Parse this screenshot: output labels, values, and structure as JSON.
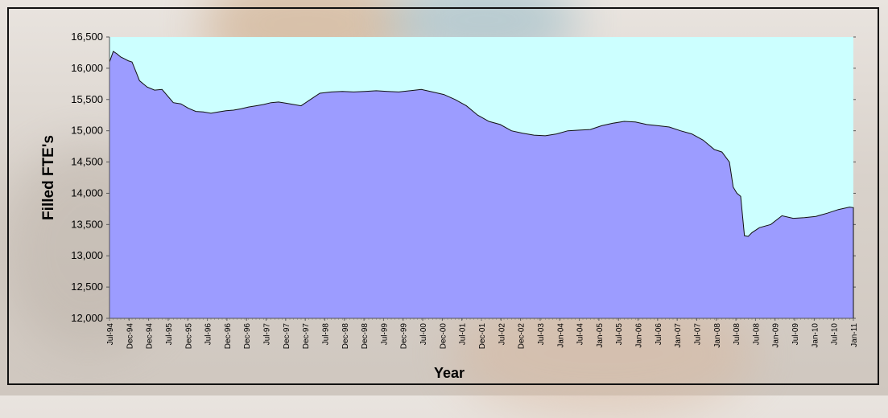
{
  "chart_data": {
    "type": "area",
    "xlabel": "Year",
    "ylabel": "Filled FTE's",
    "ylim": [
      12000,
      16500
    ],
    "yticks": [
      12000,
      12500,
      13000,
      13500,
      14000,
      14500,
      15000,
      15500,
      16000,
      16500
    ],
    "ytick_labels": [
      "12,000",
      "12,500",
      "13,000",
      "13,500",
      "14,000",
      "14,500",
      "15,000",
      "15,500",
      "16,000",
      "16,500"
    ],
    "x_range": [
      "1994-07",
      "2011-01"
    ],
    "xtick_labels": [
      "Jul-94",
      "Dec-94",
      "Dec-94",
      "Jul-95",
      "Dec-95",
      "Jul-96",
      "Dec-96",
      "Dec-96",
      "Jul-97",
      "Dec-97",
      "Dec-97",
      "Jul-98",
      "Dec-98",
      "Dec-98",
      "Jul-99",
      "Dec-99",
      "Jul-00",
      "Dec-00",
      "Jul-01",
      "Dec-01",
      "Jul-02",
      "Dec-02",
      "Jul-03",
      "Jan-04",
      "Jul-04",
      "Jan-05",
      "Jul-05",
      "Jan-06",
      "Jul-06",
      "Jan-07",
      "Jul-07",
      "Jan-08",
      "Jul-08",
      "Jul-08",
      "Jan-09",
      "Jul-09",
      "Jan-10",
      "Jul-10",
      "Jan-11"
    ],
    "series": [
      {
        "color": "#9c9cff",
        "x": [
          "1994-07",
          "1994-08",
          "1994-09",
          "1994-10",
          "1994-11",
          "1994-12",
          "1995-01",
          "1995-02",
          "1995-03",
          "1995-05",
          "1995-07",
          "1995-09",
          "1995-12",
          "1996-02",
          "1996-04",
          "1996-06",
          "1996-08",
          "1996-10",
          "1996-12",
          "1997-02",
          "1997-04",
          "1997-06",
          "1997-08",
          "1997-10",
          "1997-12",
          "1998-02",
          "1998-04",
          "1998-06",
          "1998-08",
          "1998-10",
          "1998-12",
          "1999-03",
          "1999-06",
          "1999-09",
          "1999-12",
          "2000-03",
          "2000-06",
          "2000-09",
          "2000-12",
          "2001-03",
          "2001-06",
          "2001-09",
          "2001-12",
          "2002-03",
          "2002-06",
          "2002-09",
          "2002-12",
          "2003-03",
          "2003-06",
          "2003-09",
          "2003-12",
          "2004-03",
          "2004-06",
          "2004-09",
          "2004-12",
          "2005-03",
          "2005-06",
          "2005-09",
          "2005-12",
          "2006-03",
          "2006-06",
          "2006-09",
          "2006-12",
          "2007-03",
          "2007-06",
          "2007-09",
          "2007-12",
          "2008-02",
          "2008-04",
          "2008-05",
          "2008-06",
          "2008-07",
          "2008-08",
          "2008-09",
          "2008-10",
          "2008-12",
          "2009-03",
          "2009-06",
          "2009-09",
          "2009-12",
          "2010-03",
          "2010-06",
          "2010-09",
          "2010-12",
          "2011-01"
        ],
        "values": [
          16100,
          16270,
          16230,
          16180,
          16150,
          16120,
          16100,
          15950,
          15800,
          15700,
          15650,
          15660,
          15450,
          15430,
          15360,
          15310,
          15300,
          15280,
          15300,
          15320,
          15330,
          15350,
          15380,
          15400,
          15420,
          15450,
          15460,
          15440,
          15420,
          15400,
          15480,
          15600,
          15620,
          15630,
          15620,
          15630,
          15640,
          15630,
          15620,
          15640,
          15660,
          15620,
          15580,
          15500,
          15400,
          15250,
          15150,
          15100,
          15000,
          14960,
          14930,
          14920,
          14950,
          15000,
          15010,
          15020,
          15080,
          15120,
          15150,
          15140,
          15100,
          15080,
          15060,
          15000,
          14950,
          14850,
          14700,
          14660,
          14500,
          14100,
          14000,
          13950,
          13320,
          13310,
          13370,
          13450,
          13500,
          13640,
          13600,
          13610,
          13630,
          13680,
          13740,
          13780,
          13770
        ]
      }
    ],
    "plot_background": "#ccffff",
    "area_color": "#9c9cff"
  }
}
